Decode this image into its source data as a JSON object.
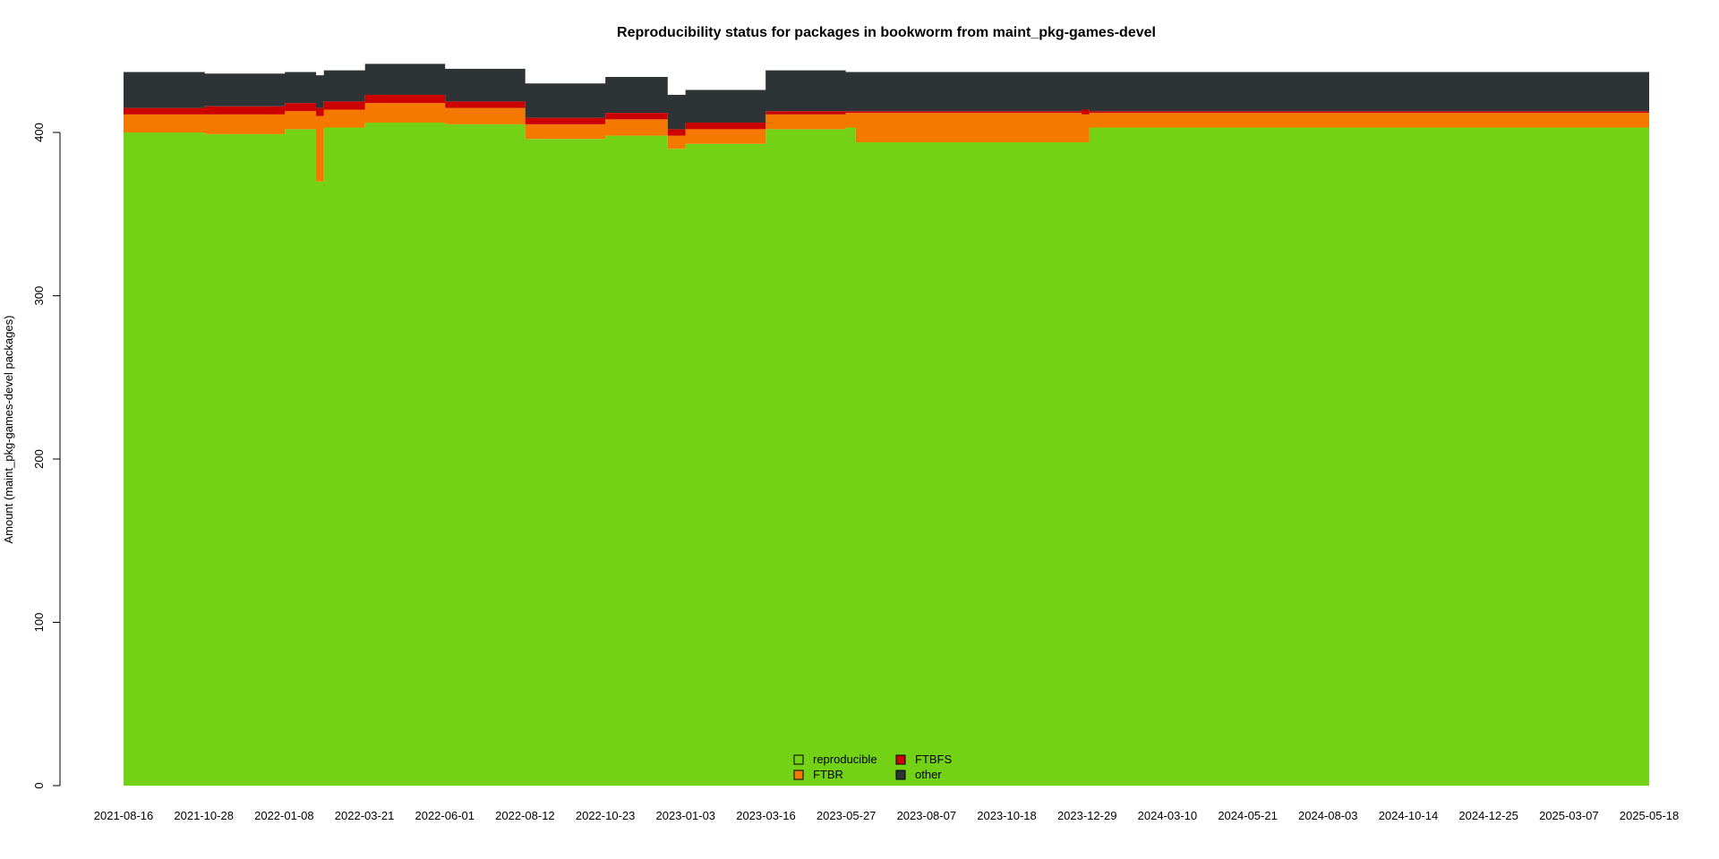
{
  "chart_data": {
    "type": "area",
    "title": "Reproducibility status for packages in bookworm from maint_pkg-games-devel",
    "xlabel": "",
    "ylabel": "Amount (maint_pkg-games-devel packages)",
    "ylim": [
      0,
      440
    ],
    "yticks": [
      0,
      100,
      200,
      300,
      400
    ],
    "xticks": [
      "2021-08-16",
      "2021-10-28",
      "2022-01-08",
      "2022-03-21",
      "2022-06-01",
      "2022-08-12",
      "2022-10-23",
      "2023-01-03",
      "2023-03-16",
      "2023-05-27",
      "2023-08-07",
      "2023-10-18",
      "2023-12-29",
      "2024-03-10",
      "2024-05-21",
      "2024-08-03",
      "2024-10-14",
      "2024-12-25",
      "2025-03-07",
      "2025-05-18"
    ],
    "xlim": [
      "2021-08-16",
      "2025-05-18"
    ],
    "stacked": true,
    "legend": {
      "position": "bottom-center",
      "ncol": 2
    },
    "colors": {
      "reproducible": "#73d216",
      "FTBR": "#f57900",
      "FTBFS": "#cc0000",
      "other": "#2e3436"
    },
    "series": [
      {
        "name": "reproducible",
        "x": [
          "2021-08-16",
          "2021-10-28",
          "2022-01-08",
          "2022-02-05",
          "2022-02-12",
          "2022-03-21",
          "2022-06-01",
          "2022-08-12",
          "2022-10-23",
          "2022-12-18",
          "2023-01-03",
          "2023-03-16",
          "2023-05-27",
          "2023-06-05",
          "2023-10-18",
          "2023-12-25",
          "2024-01-01",
          "2024-03-10",
          "2024-08-03",
          "2024-12-25",
          "2025-05-18"
        ],
        "values": [
          400,
          399,
          402,
          370,
          403,
          406,
          405,
          396,
          398,
          390,
          393,
          402,
          403,
          394,
          394,
          394,
          403,
          403,
          403,
          403,
          403
        ]
      },
      {
        "name": "FTBR",
        "x": [
          "2021-08-16",
          "2021-10-28",
          "2022-01-08",
          "2022-02-05",
          "2022-02-12",
          "2022-03-21",
          "2022-06-01",
          "2022-08-12",
          "2022-10-23",
          "2022-12-18",
          "2023-01-03",
          "2023-03-16",
          "2023-05-27",
          "2023-06-05",
          "2023-10-18",
          "2023-12-25",
          "2024-01-01",
          "2024-03-10",
          "2024-08-03",
          "2024-12-25",
          "2025-05-18"
        ],
        "values": [
          11,
          12,
          11,
          40,
          11,
          12,
          10,
          9,
          10,
          8,
          9,
          9,
          9,
          18,
          18,
          17,
          9,
          9,
          9,
          9,
          9
        ]
      },
      {
        "name": "FTBFS",
        "x": [
          "2021-08-16",
          "2021-10-28",
          "2022-01-08",
          "2022-02-05",
          "2022-02-12",
          "2022-03-21",
          "2022-06-01",
          "2022-08-12",
          "2022-10-23",
          "2022-12-18",
          "2023-01-03",
          "2023-03-16",
          "2023-05-27",
          "2023-06-05",
          "2023-10-18",
          "2023-12-25",
          "2024-01-01",
          "2024-03-10",
          "2024-08-03",
          "2024-12-25",
          "2025-05-18"
        ],
        "values": [
          4,
          5,
          5,
          5,
          5,
          5,
          4,
          4,
          4,
          4,
          4,
          2,
          1,
          1,
          1,
          3,
          1,
          1,
          1,
          1,
          1
        ]
      },
      {
        "name": "other",
        "x": [
          "2021-08-16",
          "2021-10-28",
          "2022-01-08",
          "2022-02-05",
          "2022-02-12",
          "2022-03-21",
          "2022-06-01",
          "2022-08-12",
          "2022-10-23",
          "2022-12-18",
          "2023-01-03",
          "2023-03-16",
          "2023-05-27",
          "2023-06-05",
          "2023-10-18",
          "2023-12-25",
          "2024-01-01",
          "2024-03-10",
          "2024-08-03",
          "2024-12-25",
          "2025-05-18"
        ],
        "values": [
          22,
          20,
          19,
          20,
          19,
          19,
          20,
          21,
          22,
          21,
          20,
          25,
          24,
          24,
          24,
          23,
          24,
          24,
          24,
          24,
          24
        ]
      }
    ]
  }
}
